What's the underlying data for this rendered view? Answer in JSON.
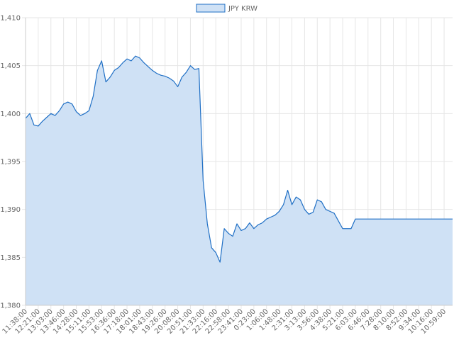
{
  "chart_data": {
    "type": "line",
    "categories": [
      "11:38:00",
      null,
      null,
      "12:21:00",
      null,
      null,
      "13:03:00",
      null,
      null,
      "13:46:00",
      null,
      null,
      "14:28:00",
      null,
      null,
      "15:11:00",
      null,
      null,
      "15:53:00",
      null,
      null,
      "16:36:00",
      null,
      null,
      "17:18:00",
      null,
      null,
      "18:01:00",
      null,
      null,
      "18:43:00",
      null,
      null,
      "19:26:00",
      null,
      null,
      "20:08:00",
      null,
      null,
      "20:51:00",
      null,
      null,
      "21:33:00",
      null,
      null,
      "22:16:00",
      null,
      null,
      "22:58:00",
      null,
      null,
      "23:41:00",
      null,
      null,
      "0:23:00",
      null,
      null,
      "1:06:00",
      null,
      null,
      "1:48:00",
      null,
      null,
      "2:31:00",
      null,
      null,
      "3:13:00",
      null,
      null,
      "3:56:00",
      null,
      null,
      "4:38:00",
      null,
      null,
      "5:21:00",
      null,
      null,
      "6:03:00",
      null,
      null,
      "6:46:00",
      null,
      null,
      "7:28:00",
      null,
      null,
      "8:10:00",
      null,
      null,
      "8:52:00",
      null,
      null,
      "9:34:00",
      null,
      null,
      "10:16:00",
      null,
      null,
      "10:59:00",
      null,
      null
    ],
    "series": [
      {
        "name": "JPY KRW",
        "color": "#1f6fc5",
        "fill": "#cfe1f5",
        "values": [
          1399.5,
          1400,
          1398.8,
          1398.7,
          1399.2,
          1399.6,
          1400,
          1399.8,
          1400.3,
          1401,
          1401.2,
          1401,
          1400.2,
          1399.8,
          1400,
          1400.3,
          1401.8,
          1404.5,
          1405.5,
          1403.3,
          1403.8,
          1404.5,
          1404.8,
          1405.3,
          1405.7,
          1405.5,
          1406,
          1405.8,
          1405.3,
          1404.9,
          1404.5,
          1404.2,
          1404,
          1403.9,
          1403.7,
          1403.4,
          1402.8,
          1403.8,
          1404.3,
          1405,
          1404.6,
          1404.7,
          1393,
          1388.5,
          1386,
          1385.5,
          1384.5,
          1388,
          1387.5,
          1387.2,
          1388.5,
          1387.8,
          1388,
          1388.6,
          1388,
          1388.4,
          1388.6,
          1389,
          1389.2,
          1389.4,
          1389.8,
          1390.5,
          1392,
          1390.5,
          1391.3,
          1391,
          1390,
          1389.5,
          1389.7,
          1391,
          1390.8,
          1390,
          1389.8,
          1389.6,
          1388.8,
          1388,
          1388,
          1388,
          1389,
          1389,
          1389,
          1389,
          1389,
          1389,
          1389,
          1389,
          1389,
          1389,
          1389,
          1389,
          1389,
          1389,
          1389,
          1389,
          1389,
          1389,
          1389,
          1389,
          1389,
          1389,
          1389,
          1389
        ]
      }
    ],
    "ylim": [
      1380,
      1410
    ],
    "yticks": [
      {
        "value": 1380,
        "label": "1,380"
      },
      {
        "value": 1385,
        "label": "1,385"
      },
      {
        "value": 1390,
        "label": "1,390"
      },
      {
        "value": 1395,
        "label": "1,395"
      },
      {
        "value": 1400,
        "label": "1,400"
      },
      {
        "value": 1405,
        "label": "1,405"
      },
      {
        "value": 1410,
        "label": "1,410"
      }
    ],
    "grid": true,
    "legend": "top"
  }
}
